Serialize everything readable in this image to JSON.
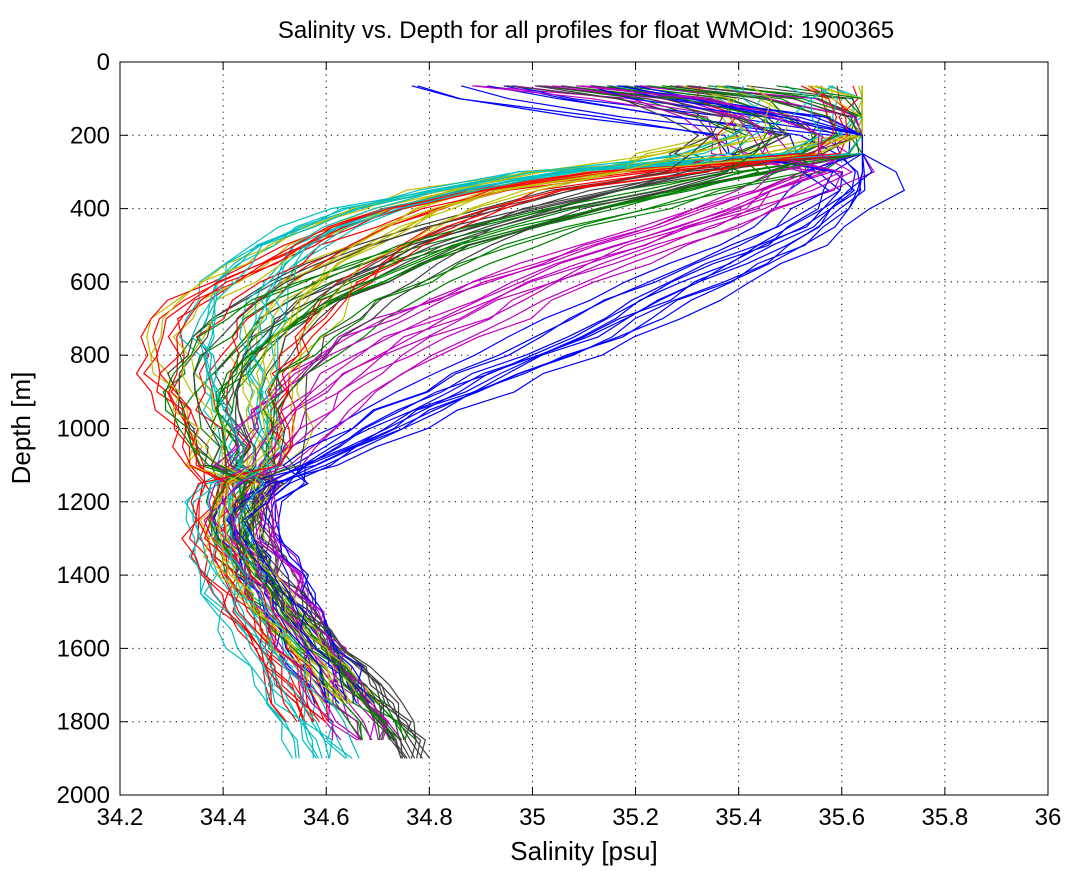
{
  "chart_data": {
    "type": "line",
    "title": "Salinity vs. Depth for all profiles for float WMOId: 1900365",
    "xlabel": "Salinity [psu]",
    "ylabel": "Depth [m]",
    "xlim": [
      34.2,
      36
    ],
    "ylim": [
      0,
      2000
    ],
    "y_reversed": true,
    "grid": true,
    "grid_style": "dotted",
    "legend": "none",
    "x_ticks": [
      "34.2",
      "34.4",
      "34.6",
      "34.8",
      "35",
      "35.2",
      "35.4",
      "35.6",
      "35.8",
      "36"
    ],
    "y_ticks": [
      "0",
      "200",
      "400",
      "600",
      "800",
      "1000",
      "1200",
      "1400",
      "1600",
      "1800",
      "2000"
    ],
    "depth_levels": [
      65,
      100,
      150,
      200,
      250,
      300,
      350,
      400,
      450,
      500,
      550,
      600,
      650,
      700,
      750,
      800,
      850,
      900,
      950,
      1000,
      1050,
      1100,
      1150,
      1200,
      1250,
      1300,
      1350,
      1400,
      1450,
      1500,
      1550,
      1600,
      1650,
      1700,
      1750,
      1800,
      1850,
      1900
    ],
    "profile_colors": [
      "#0000ff",
      "#ff0000",
      "#008000",
      "#00bfbf",
      "#bf00bf",
      "#bfbf00",
      "#404040"
    ],
    "profile_count": 90,
    "series": [
      {
        "salinity": [
          34.93,
          35.05,
          35.3,
          35.55,
          35.58,
          35.6,
          35.6,
          35.57,
          35.52,
          35.45,
          35.38,
          35.3,
          35.22,
          35.15,
          35.08,
          35.0,
          34.92,
          34.84,
          34.76,
          34.69,
          34.62,
          34.56,
          34.51,
          34.47,
          34.45,
          34.46,
          34.48,
          34.5,
          34.52,
          34.54,
          34.56,
          34.58,
          34.6,
          34.62,
          34.64,
          34.66,
          34.67,
          34.68
        ]
      },
      {
        "salinity": [
          35.55,
          35.58,
          35.6,
          35.59,
          35.57,
          35.2,
          34.95,
          34.82,
          34.72,
          34.64,
          34.58,
          34.52,
          34.47,
          34.43,
          34.41,
          34.4,
          34.39,
          34.39,
          34.4,
          34.41,
          34.42,
          34.42,
          34.41,
          34.4,
          34.39,
          34.39,
          34.4,
          34.42,
          34.44,
          34.46,
          34.48,
          34.5,
          34.52,
          34.54,
          34.56,
          34.58,
          34.6,
          34.61
        ]
      },
      {
        "salinity": [
          35.25,
          35.45,
          35.55,
          35.58,
          35.55,
          35.45,
          35.3,
          35.15,
          35.0,
          34.88,
          34.78,
          34.7,
          34.62,
          34.56,
          34.51,
          34.47,
          34.44,
          34.42,
          34.41,
          34.42,
          34.43,
          34.44,
          34.43,
          34.42,
          34.41,
          34.41,
          34.43,
          34.45,
          34.48,
          34.51,
          34.54,
          34.57,
          34.6,
          34.63,
          34.66,
          34.69,
          34.71,
          34.72
        ]
      },
      {
        "salinity": [
          35.6,
          35.62,
          35.61,
          35.58,
          35.5,
          35.0,
          34.8,
          34.65,
          34.55,
          34.48,
          34.43,
          34.4,
          34.38,
          34.37,
          34.36,
          34.37,
          34.38,
          34.39,
          34.4,
          34.41,
          34.42,
          34.42,
          34.41,
          34.4,
          34.39,
          34.39,
          34.4,
          34.41,
          34.42,
          34.44,
          34.46,
          34.48,
          34.5,
          34.52,
          34.54,
          34.56,
          34.58,
          34.6
        ]
      },
      {
        "salinity": [
          35.1,
          35.35,
          35.5,
          35.56,
          35.58,
          35.55,
          35.48,
          35.4,
          35.3,
          35.2,
          35.1,
          35.0,
          34.92,
          34.84,
          34.76,
          34.7,
          34.64,
          34.59,
          34.55,
          34.52,
          34.49,
          34.47,
          34.45,
          34.44,
          34.44,
          34.45,
          34.47,
          34.49,
          34.51,
          34.53,
          34.55,
          34.57,
          34.59,
          34.61,
          34.63,
          34.65,
          34.67,
          34.68
        ]
      },
      {
        "salinity": [
          35.5,
          35.56,
          35.58,
          35.57,
          35.4,
          35.1,
          34.9,
          34.78,
          34.7,
          34.63,
          34.57,
          34.52,
          34.48,
          34.45,
          34.43,
          34.42,
          34.42,
          34.43,
          34.44,
          34.45,
          34.45,
          34.44,
          34.43,
          34.42,
          34.41,
          34.41,
          34.42,
          34.44,
          34.46,
          34.49,
          34.52,
          34.55,
          34.58,
          34.61,
          34.64,
          34.67,
          34.69,
          34.7
        ]
      },
      {
        "salinity": [
          35.2,
          35.4,
          35.52,
          35.56,
          35.5,
          35.35,
          35.18,
          35.02,
          34.9,
          34.8,
          34.72,
          34.65,
          34.59,
          34.54,
          34.5,
          34.47,
          34.45,
          34.44,
          34.44,
          34.45,
          34.46,
          34.46,
          34.45,
          34.44,
          34.43,
          34.43,
          34.45,
          34.47,
          34.5,
          34.53,
          34.56,
          34.59,
          34.62,
          34.65,
          34.68,
          34.71,
          34.73,
          34.74
        ]
      }
    ]
  }
}
